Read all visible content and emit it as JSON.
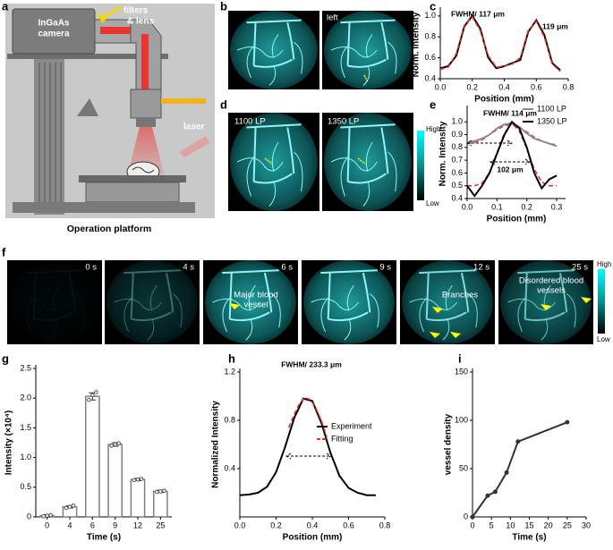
{
  "panel_labels": [
    "a",
    "b",
    "c",
    "d",
    "e",
    "f",
    "g",
    "h",
    "i"
  ],
  "schematic": {
    "camera_label": [
      "InGaAs",
      "camera"
    ],
    "filters_label": [
      "filters",
      "& lens"
    ],
    "laser_label": "laser",
    "caption": "Operation platform"
  },
  "images": {
    "b": {
      "labels": [
        "left"
      ]
    },
    "d": {
      "labels": [
        "1100 LP",
        "1350 LP"
      ],
      "colorbar": [
        "High",
        "Low"
      ]
    },
    "f": {
      "times": [
        "0 s",
        "4 s",
        "6 s",
        "9 s",
        "12 s",
        "25 s"
      ],
      "annotations": [
        [
          "Major blood",
          "vessel"
        ],
        [
          "Branches"
        ],
        [
          "Disordered blood",
          "vessels"
        ]
      ],
      "colorbar": [
        "High",
        "Low"
      ]
    }
  },
  "chart_data": [
    {
      "type": "line",
      "xlabel": "Position (mm)",
      "ylabel": "Norm. Intensity",
      "xlim": [
        0,
        0.8
      ],
      "xticks": [
        {
          "value": 0,
          "label": "0.0"
        },
        0.2,
        0.4,
        0.6,
        0.8
      ],
      "ylim": [
        0.4,
        1.05
      ],
      "yticks": [
        0.4,
        0.6,
        0.8,
        {
          "value": 1,
          "label": "1.0"
        }
      ],
      "annotations": [
        "FWHM/ 117 μm",
        "119 μm"
      ],
      "series": [
        {
          "color": "#000000",
          "x": [
            0,
            0.05,
            0.1,
            0.15,
            0.2,
            0.25,
            0.3,
            0.35,
            0.4,
            0.45,
            0.5,
            0.55,
            0.6,
            0.65,
            0.7,
            0.75
          ],
          "values": [
            0.5,
            0.52,
            0.62,
            0.9,
            1.0,
            0.88,
            0.6,
            0.5,
            0.52,
            0.55,
            0.58,
            0.85,
            0.96,
            0.82,
            0.55,
            0.48
          ]
        },
        {
          "color": "#e8302a",
          "dash": true,
          "x": [
            0,
            0.05,
            0.1,
            0.15,
            0.2,
            0.25,
            0.3,
            0.35,
            0.4,
            0.45,
            0.5,
            0.55,
            0.6,
            0.65,
            0.7,
            0.75
          ],
          "values": [
            0.49,
            0.51,
            0.64,
            0.91,
            0.99,
            0.86,
            0.62,
            0.51,
            0.52,
            0.54,
            0.6,
            0.86,
            0.95,
            0.8,
            0.54,
            0.47
          ]
        }
      ]
    },
    {
      "type": "line",
      "xlabel": "Position (mm)",
      "ylabel": "Norm. Intensity",
      "legend": "top-right",
      "xlim": [
        0,
        0.33
      ],
      "xticks": [
        {
          "value": 0,
          "label": "0.0"
        },
        0.1,
        0.2,
        0.3
      ],
      "ylim": [
        0.4,
        1.1
      ],
      "yticks": [
        0.4,
        0.5,
        0.6,
        0.7,
        0.8,
        0.9,
        {
          "value": 1,
          "label": "1.0"
        }
      ],
      "annotations": [
        "FWHM/ 114 μm",
        "102 μm"
      ],
      "series": [
        {
          "color": "#e8302a",
          "dash": true,
          "x": [
            0,
            0.025,
            0.05,
            0.075,
            0.1,
            0.125,
            0.15,
            0.175,
            0.2,
            0.225,
            0.25,
            0.275,
            0.3
          ],
          "values": [
            0.83,
            0.84,
            0.86,
            0.9,
            0.94,
            0.97,
            0.98,
            0.96,
            0.92,
            0.88,
            0.85,
            0.83,
            0.82
          ]
        },
        {
          "color": "#e8302a",
          "dash": true,
          "x": [
            0,
            0.025,
            0.05,
            0.075,
            0.1,
            0.125,
            0.15,
            0.175,
            0.2,
            0.225,
            0.25,
            0.275,
            0.3
          ],
          "values": [
            0.5,
            0.5,
            0.52,
            0.6,
            0.76,
            0.91,
            0.99,
            0.93,
            0.79,
            0.63,
            0.53,
            0.5,
            0.5
          ]
        },
        {
          "name": "1100 LP",
          "color": "#8c8c8c",
          "x": [
            0,
            0.025,
            0.05,
            0.075,
            0.1,
            0.125,
            0.15,
            0.175,
            0.2,
            0.225,
            0.25,
            0.275,
            0.3
          ],
          "values": [
            0.84,
            0.85,
            0.87,
            0.9,
            0.95,
            0.98,
            0.99,
            0.96,
            0.91,
            0.87,
            0.85,
            0.83,
            0.81
          ]
        },
        {
          "name": "1350 LP",
          "color": "#000000",
          "x": [
            0,
            0.025,
            0.05,
            0.075,
            0.1,
            0.125,
            0.15,
            0.175,
            0.2,
            0.225,
            0.25,
            0.275,
            0.3
          ],
          "values": [
            0.5,
            0.42,
            0.5,
            0.6,
            0.75,
            0.9,
            1.0,
            0.95,
            0.8,
            0.6,
            0.48,
            0.55,
            0.58
          ]
        }
      ]
    },
    {
      "type": "bar",
      "xlabel": "Time (s)",
      "ylabel": "Intensity (×10⁴)",
      "color": "#7f7f7f",
      "categories": [
        "0",
        "4",
        "6",
        "9",
        "12",
        "25"
      ],
      "values": [
        0.02,
        0.17,
        2.03,
        1.22,
        0.63,
        0.43
      ],
      "errors": [
        0.02,
        0.02,
        0.06,
        0.03,
        0.02,
        0.02
      ],
      "points": [
        [
          0.01,
          0.02,
          0.03
        ],
        [
          0.15,
          0.17,
          0.19
        ],
        [
          1.97,
          2.05,
          2.1
        ],
        [
          1.2,
          1.22,
          1.24
        ],
        [
          0.62,
          0.63,
          0.64
        ],
        [
          0.42,
          0.43,
          0.44
        ]
      ],
      "ylim": [
        0,
        2.5
      ],
      "yticks": [
        0,
        0.5,
        {
          "value": 1,
          "label": "1.0"
        },
        1.5,
        {
          "value": 2,
          "label": "2.0"
        },
        2.5
      ]
    },
    {
      "type": "line",
      "xlabel": "Position (mm)",
      "ylabel": "Normalized Intensity",
      "legend": "right",
      "xlim": [
        0,
        0.8
      ],
      "xticks": [
        {
          "value": 0,
          "label": "0.0"
        },
        0.2,
        0.4,
        0.6,
        0.8
      ],
      "ylim": [
        0,
        1.2
      ],
      "yticks": [
        0.4,
        0.8,
        1.2
      ],
      "annotations": [
        "FWHM/ 233.3 μm"
      ],
      "series": [
        {
          "name": "Experiment",
          "color": "#000000",
          "x": [
            0,
            0.05,
            0.1,
            0.15,
            0.2,
            0.25,
            0.3,
            0.35,
            0.4,
            0.45,
            0.5,
            0.55,
            0.6,
            0.65,
            0.7,
            0.75
          ],
          "values": [
            0.18,
            0.185,
            0.2,
            0.25,
            0.37,
            0.58,
            0.82,
            0.98,
            0.96,
            0.78,
            0.53,
            0.34,
            0.24,
            0.2,
            0.18,
            0.18
          ]
        },
        {
          "name": "Fitting",
          "color": "#e8302a",
          "dash": true,
          "x": [
            0.27,
            0.3,
            0.33,
            0.36,
            0.39,
            0.42,
            0.45,
            0.48
          ],
          "values": [
            0.74,
            0.85,
            0.94,
            0.99,
            0.97,
            0.9,
            0.8,
            0.66
          ]
        }
      ]
    },
    {
      "type": "line",
      "xlabel": "Time (s)",
      "ylabel": "vessel density",
      "xlim": [
        0,
        30
      ],
      "xticks": [
        0,
        5,
        10,
        15,
        20,
        25,
        30
      ],
      "ylim": [
        0,
        150
      ],
      "yticks": [
        0,
        50,
        100,
        150
      ],
      "series": [
        {
          "color": "#333333",
          "markers": true,
          "x": [
            0,
            4,
            6,
            9,
            12,
            25
          ],
          "values": [
            0,
            22,
            26,
            46,
            78,
            98
          ]
        }
      ]
    }
  ]
}
